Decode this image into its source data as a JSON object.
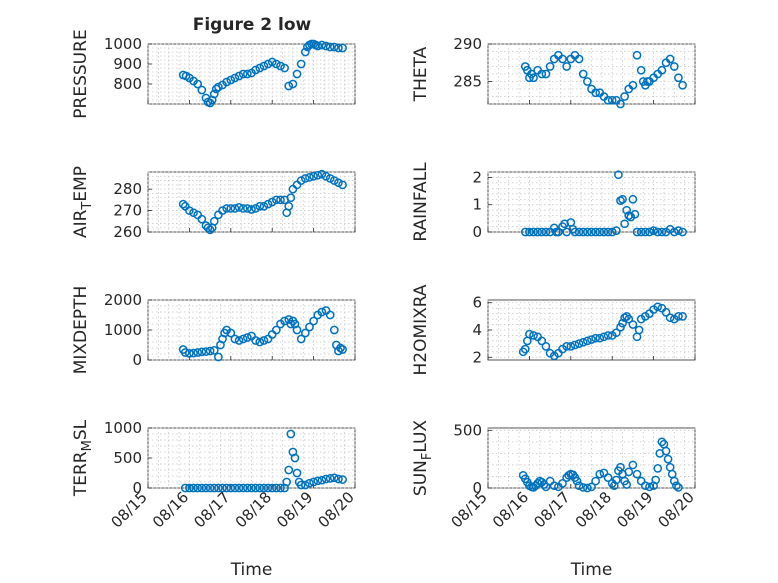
{
  "figure": {
    "title": "Figure 2 low"
  },
  "chart_data": [
    {
      "type": "scatter",
      "ylabel": "PRESSURE",
      "ylim": [
        700,
        1000
      ],
      "yticks": [
        800,
        900,
        1000
      ],
      "xlim": [
        "08/15",
        "08/20"
      ],
      "xticks": [
        "08/15",
        "08/16",
        "08/17",
        "08/18",
        "08/19",
        "08/20"
      ],
      "grid": true,
      "x": [
        0.85,
        0.92,
        1.0,
        1.1,
        1.2,
        1.3,
        1.4,
        1.45,
        1.5,
        1.55,
        1.6,
        1.65,
        1.7,
        1.8,
        1.9,
        2.0,
        2.1,
        2.2,
        2.3,
        2.4,
        2.5,
        2.6,
        2.7,
        2.8,
        2.9,
        3.0,
        3.1,
        3.2,
        3.3,
        3.4,
        3.5,
        3.6,
        3.7,
        3.8,
        3.85,
        3.9,
        3.95,
        4.0,
        4.05,
        4.1,
        4.2,
        4.3,
        4.4,
        4.5,
        4.6,
        4.7
      ],
      "y": [
        845,
        840,
        830,
        815,
        800,
        770,
        730,
        710,
        705,
        720,
        750,
        775,
        785,
        795,
        810,
        820,
        830,
        840,
        850,
        850,
        855,
        870,
        880,
        890,
        900,
        910,
        900,
        890,
        880,
        790,
        800,
        850,
        900,
        960,
        985,
        995,
        1000,
        1000,
        995,
        990,
        995,
        990,
        985,
        985,
        980,
        980
      ]
    },
    {
      "type": "scatter",
      "ylabel": "THETA",
      "ylim": [
        282,
        290
      ],
      "yticks": [
        285,
        290
      ],
      "xlim": [
        "08/15",
        "08/20"
      ],
      "xticks": [
        "08/15",
        "08/16",
        "08/17",
        "08/18",
        "08/19",
        "08/20"
      ],
      "grid": true,
      "x": [
        0.9,
        0.95,
        1.0,
        1.05,
        1.1,
        1.2,
        1.3,
        1.4,
        1.5,
        1.6,
        1.7,
        1.8,
        1.9,
        2.0,
        2.1,
        2.2,
        2.3,
        2.4,
        2.5,
        2.6,
        2.7,
        2.8,
        2.9,
        3.0,
        3.1,
        3.2,
        3.3,
        3.4,
        3.5,
        3.6,
        3.7,
        3.75,
        3.8,
        3.85,
        3.9,
        4.0,
        4.1,
        4.2,
        4.3,
        4.4,
        4.5,
        4.6,
        4.7
      ],
      "y": [
        287,
        286.5,
        285.5,
        286,
        285.5,
        286.5,
        286,
        286,
        287,
        288,
        288.5,
        288,
        287,
        288,
        288.5,
        288,
        286,
        285,
        284,
        283.5,
        283.5,
        283,
        282.5,
        282.5,
        282.5,
        282,
        283,
        284,
        284.5,
        288.5,
        286.5,
        285,
        284.5,
        285,
        285,
        285.5,
        286,
        286.5,
        287.5,
        288,
        287,
        285.5,
        284.5
      ]
    },
    {
      "type": "scatter",
      "ylabel": "AIR_TEMP",
      "ylim": [
        260,
        288
      ],
      "yticks": [
        260,
        270,
        280
      ],
      "xlim": [
        "08/15",
        "08/20"
      ],
      "xticks": [
        "08/15",
        "08/16",
        "08/17",
        "08/18",
        "08/19",
        "08/20"
      ],
      "grid": true,
      "x": [
        0.85,
        0.9,
        1.0,
        1.1,
        1.2,
        1.3,
        1.4,
        1.45,
        1.5,
        1.55,
        1.6,
        1.7,
        1.8,
        1.9,
        2.0,
        2.1,
        2.2,
        2.3,
        2.4,
        2.5,
        2.6,
        2.7,
        2.8,
        2.9,
        3.0,
        3.1,
        3.2,
        3.3,
        3.35,
        3.4,
        3.45,
        3.5,
        3.6,
        3.7,
        3.8,
        3.9,
        4.0,
        4.1,
        4.2,
        4.3,
        4.4,
        4.5,
        4.6,
        4.7
      ],
      "y": [
        273,
        272,
        270,
        269,
        268,
        266,
        263,
        262,
        261,
        262,
        265,
        268,
        270,
        271,
        271,
        271,
        271.5,
        271,
        271,
        270.5,
        271,
        272,
        272,
        273,
        274,
        275,
        275,
        275,
        269,
        272,
        276,
        280,
        282,
        284,
        285,
        285.5,
        286,
        286.5,
        287,
        286,
        285,
        284,
        283,
        282
      ]
    },
    {
      "type": "scatter",
      "ylabel": "RAINFALL",
      "ylim": [
        0,
        2.2
      ],
      "yticks": [
        0,
        1,
        2
      ],
      "xlim": [
        "08/15",
        "08/20"
      ],
      "xticks": [
        "08/15",
        "08/16",
        "08/17",
        "08/18",
        "08/19",
        "08/20"
      ],
      "grid": true,
      "x": [
        0.9,
        1.0,
        1.1,
        1.2,
        1.3,
        1.4,
        1.5,
        1.6,
        1.65,
        1.7,
        1.8,
        1.85,
        1.9,
        2.0,
        2.05,
        2.1,
        2.2,
        2.3,
        2.4,
        2.5,
        2.6,
        2.7,
        2.8,
        2.9,
        3.0,
        3.1,
        3.15,
        3.2,
        3.25,
        3.3,
        3.35,
        3.4,
        3.45,
        3.5,
        3.55,
        3.6,
        3.7,
        3.8,
        3.9,
        4.0,
        4.1,
        4.2,
        4.3,
        4.4,
        4.5,
        4.6,
        4.7
      ],
      "y": [
        0,
        0,
        0,
        0,
        0,
        0,
        0,
        0.15,
        0,
        0,
        0.2,
        0.3,
        0,
        0.35,
        0.1,
        0,
        0,
        0,
        0,
        0,
        0,
        0,
        0,
        0,
        0,
        0.05,
        2.1,
        1.15,
        1.2,
        0.3,
        0.8,
        0.6,
        0.55,
        1.2,
        0.65,
        0,
        0,
        0,
        0,
        0.05,
        0,
        0,
        0,
        0.1,
        0,
        0.05,
        0
      ]
    },
    {
      "type": "scatter",
      "ylabel": "MIXDEPTH",
      "ylim": [
        0,
        2000
      ],
      "yticks": [
        0,
        1000,
        2000
      ],
      "xlim": [
        "08/15",
        "08/20"
      ],
      "xticks": [
        "08/15",
        "08/16",
        "08/17",
        "08/18",
        "08/19",
        "08/20"
      ],
      "grid": true,
      "x": [
        0.85,
        0.9,
        1.0,
        1.1,
        1.2,
        1.3,
        1.4,
        1.5,
        1.6,
        1.7,
        1.75,
        1.8,
        1.85,
        1.9,
        2.0,
        2.1,
        2.2,
        2.3,
        2.4,
        2.5,
        2.6,
        2.7,
        2.8,
        2.9,
        3.0,
        3.1,
        3.2,
        3.3,
        3.4,
        3.45,
        3.5,
        3.55,
        3.6,
        3.7,
        3.8,
        3.9,
        4.0,
        4.1,
        4.2,
        4.3,
        4.4,
        4.5,
        4.55,
        4.6,
        4.65,
        4.7
      ],
      "y": [
        350,
        250,
        220,
        230,
        250,
        270,
        280,
        300,
        320,
        100,
        500,
        700,
        900,
        1000,
        900,
        700,
        650,
        700,
        750,
        800,
        650,
        600,
        650,
        700,
        850,
        1000,
        1200,
        1300,
        1350,
        1200,
        1300,
        1200,
        1000,
        700,
        900,
        1100,
        1300,
        1500,
        1600,
        1650,
        1500,
        1000,
        500,
        300,
        400,
        350
      ]
    },
    {
      "type": "scatter",
      "ylabel": "H2OMIXRA",
      "ylim": [
        1.8,
        6.2
      ],
      "yticks": [
        2,
        4,
        6
      ],
      "xlim": [
        "08/15",
        "08/20"
      ],
      "xticks": [
        "08/15",
        "08/16",
        "08/17",
        "08/18",
        "08/19",
        "08/20"
      ],
      "grid": true,
      "x": [
        0.85,
        0.9,
        0.95,
        1.0,
        1.1,
        1.2,
        1.3,
        1.4,
        1.5,
        1.6,
        1.7,
        1.8,
        1.9,
        2.0,
        2.1,
        2.2,
        2.3,
        2.4,
        2.5,
        2.6,
        2.7,
        2.8,
        2.9,
        3.0,
        3.1,
        3.2,
        3.25,
        3.3,
        3.35,
        3.4,
        3.5,
        3.6,
        3.65,
        3.7,
        3.8,
        3.9,
        4.0,
        4.1,
        4.2,
        4.3,
        4.4,
        4.5,
        4.6,
        4.7
      ],
      "y": [
        2.4,
        2.6,
        3.2,
        3.7,
        3.6,
        3.5,
        3.2,
        2.8,
        2.3,
        2.1,
        2.3,
        2.6,
        2.8,
        2.8,
        2.9,
        3.0,
        3.1,
        3.2,
        3.3,
        3.4,
        3.4,
        3.5,
        3.6,
        3.6,
        3.8,
        4.2,
        4.5,
        4.9,
        5.0,
        4.8,
        4.4,
        3.5,
        4.0,
        4.8,
        5.0,
        5.2,
        5.5,
        5.7,
        5.6,
        5.3,
        4.9,
        4.8,
        5.0,
        5.0
      ]
    },
    {
      "type": "scatter",
      "ylabel": "TERR_MSL",
      "ylim": [
        0,
        1000
      ],
      "yticks": [
        0,
        500,
        1000
      ],
      "xlim": [
        "08/15",
        "08/20"
      ],
      "xticks": [
        "08/15",
        "08/16",
        "08/17",
        "08/18",
        "08/19",
        "08/20"
      ],
      "xlabel": "Time",
      "grid": true,
      "x": [
        0.9,
        1.0,
        1.1,
        1.2,
        1.3,
        1.4,
        1.5,
        1.6,
        1.7,
        1.8,
        1.9,
        2.0,
        2.1,
        2.2,
        2.3,
        2.4,
        2.5,
        2.6,
        2.7,
        2.8,
        2.9,
        3.0,
        3.1,
        3.2,
        3.3,
        3.35,
        3.4,
        3.45,
        3.5,
        3.55,
        3.6,
        3.65,
        3.7,
        3.8,
        3.9,
        4.0,
        4.1,
        4.2,
        4.3,
        4.4,
        4.5,
        4.6,
        4.7
      ],
      "y": [
        0,
        0,
        0,
        0,
        0,
        0,
        0,
        0,
        0,
        0,
        0,
        0,
        0,
        0,
        0,
        0,
        0,
        0,
        0,
        0,
        0,
        0,
        0,
        0,
        0,
        100,
        300,
        900,
        600,
        500,
        250,
        100,
        50,
        50,
        80,
        100,
        120,
        130,
        150,
        160,
        170,
        150,
        140
      ]
    },
    {
      "type": "scatter",
      "ylabel": "SUN_FLUX",
      "ylim": [
        0,
        520
      ],
      "yticks": [
        0,
        500
      ],
      "xlim": [
        "08/15",
        "08/20"
      ],
      "xticks": [
        "08/15",
        "08/16",
        "08/17",
        "08/18",
        "08/19",
        "08/20"
      ],
      "xlabel": "Time",
      "grid": true,
      "x": [
        0.85,
        0.9,
        0.95,
        1.0,
        1.05,
        1.1,
        1.15,
        1.2,
        1.25,
        1.3,
        1.35,
        1.4,
        1.5,
        1.6,
        1.7,
        1.8,
        1.9,
        1.95,
        2.0,
        2.05,
        2.1,
        2.15,
        2.2,
        2.3,
        2.4,
        2.5,
        2.6,
        2.7,
        2.8,
        2.9,
        3.0,
        3.05,
        3.1,
        3.15,
        3.2,
        3.25,
        3.3,
        3.35,
        3.4,
        3.5,
        3.6,
        3.7,
        3.8,
        3.9,
        4.0,
        4.05,
        4.1,
        4.15,
        4.2,
        4.25,
        4.3,
        4.35,
        4.4,
        4.45,
        4.5,
        4.55,
        4.6
      ],
      "y": [
        110,
        80,
        50,
        20,
        10,
        5,
        20,
        40,
        60,
        50,
        30,
        10,
        60,
        20,
        10,
        40,
        90,
        110,
        120,
        115,
        90,
        60,
        20,
        5,
        0,
        10,
        60,
        120,
        130,
        90,
        40,
        20,
        70,
        150,
        180,
        120,
        60,
        30,
        140,
        200,
        120,
        60,
        20,
        10,
        20,
        70,
        170,
        300,
        400,
        380,
        320,
        250,
        180,
        120,
        60,
        20,
        5
      ]
    }
  ]
}
